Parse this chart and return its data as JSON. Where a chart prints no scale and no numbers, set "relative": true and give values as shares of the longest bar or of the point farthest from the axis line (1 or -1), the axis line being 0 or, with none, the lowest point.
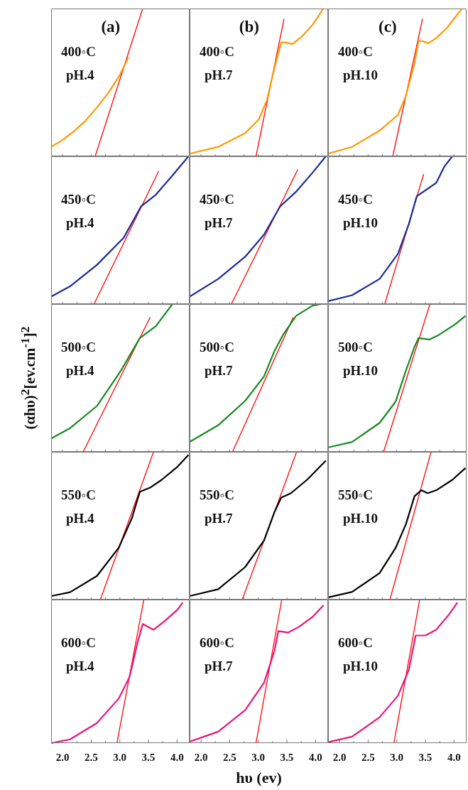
{
  "chart_data": [
    {
      "type": "line",
      "title": "(a)",
      "annotations": [
        "400◦C",
        "pH.4"
      ],
      "xlim": [
        1.8,
        4.22
      ],
      "xticks": [
        {
          "value": 2,
          "label": null
        },
        {
          "value": 2.25,
          "label": null
        },
        {
          "value": 2.5,
          "label": null
        },
        {
          "value": 2.75,
          "label": null
        },
        {
          "value": 3,
          "label": null
        },
        {
          "value": 3.25,
          "label": null
        },
        {
          "value": 3.5,
          "label": null
        },
        {
          "value": 3.75,
          "label": null
        },
        {
          "value": 4,
          "label": null
        }
      ],
      "relative": true,
      "tick_labels": false,
      "series": [
        {
          "color": "#ff9900",
          "x": [
            1.8,
            2.0,
            2.2,
            2.4,
            2.6,
            2.8,
            3.0,
            3.1,
            3.15
          ],
          "values": [
            0.064,
            0.11,
            0.17,
            0.24,
            0.33,
            0.43,
            0.55,
            0.63,
            0.67
          ]
        },
        {
          "color": "#ff0000",
          "x": [
            2.57,
            3.4
          ],
          "values": [
            0,
            1
          ]
        }
      ]
    },
    {
      "type": "line",
      "title": "(b)",
      "annotations": [
        "400◦C",
        "pH.7"
      ],
      "xlim": [
        1.8,
        4.22
      ],
      "xticks": [
        {
          "value": 2,
          "label": null
        },
        {
          "value": 2.25,
          "label": null
        },
        {
          "value": 2.5,
          "label": null
        },
        {
          "value": 2.75,
          "label": null
        },
        {
          "value": 3,
          "label": null
        },
        {
          "value": 3.25,
          "label": null
        },
        {
          "value": 3.5,
          "label": null
        },
        {
          "value": 3.75,
          "label": null
        },
        {
          "value": 4,
          "label": null
        }
      ],
      "relative": true,
      "tick_labels": false,
      "series": [
        {
          "color": "#ff9900",
          "x": [
            1.8,
            2.3,
            2.77,
            3.01,
            3.15,
            3.29,
            3.4,
            3.48,
            3.6,
            3.76,
            3.95,
            4.14
          ],
          "values": [
            0.018,
            0.064,
            0.156,
            0.25,
            0.38,
            0.61,
            0.77,
            0.77,
            0.76,
            0.81,
            0.89,
            1
          ]
        },
        {
          "color": "#ff0000",
          "x": [
            2.96,
            3.45
          ],
          "values": [
            0,
            0.93
          ]
        }
      ]
    },
    {
      "type": "line",
      "title": "(c)",
      "annotations": [
        "400◦C",
        "pH.10"
      ],
      "xlim": [
        1.8,
        4.22
      ],
      "xticks": [
        {
          "value": 2,
          "label": null
        },
        {
          "value": 2.25,
          "label": null
        },
        {
          "value": 2.5,
          "label": null
        },
        {
          "value": 2.75,
          "label": null
        },
        {
          "value": 3,
          "label": null
        },
        {
          "value": 3.25,
          "label": null
        },
        {
          "value": 3.5,
          "label": null
        },
        {
          "value": 3.75,
          "label": null
        },
        {
          "value": 4,
          "label": null
        }
      ],
      "relative": true,
      "tick_labels": false,
      "series": [
        {
          "color": "#ff9900",
          "x": [
            1.8,
            2.22,
            2.7,
            3.02,
            3.16,
            3.31,
            3.38,
            3.45,
            3.55,
            3.69,
            3.88,
            4.14
          ],
          "values": [
            0.018,
            0.064,
            0.174,
            0.28,
            0.41,
            0.63,
            0.78,
            0.78,
            0.765,
            0.8,
            0.87,
            1
          ]
        },
        {
          "color": "#ff0000",
          "x": [
            2.93,
            3.45
          ],
          "values": [
            0,
            0.93
          ]
        }
      ]
    },
    {
      "type": "line",
      "annotations": [
        "450◦C",
        "pH.4"
      ],
      "xlim": [
        1.8,
        4.22
      ],
      "xticks": [
        {
          "value": 2,
          "label": null
        },
        {
          "value": 2.25,
          "label": null
        },
        {
          "value": 2.5,
          "label": null
        },
        {
          "value": 2.75,
          "label": null
        },
        {
          "value": 3,
          "label": null
        },
        {
          "value": 3.25,
          "label": null
        },
        {
          "value": 3.5,
          "label": null
        },
        {
          "value": 3.75,
          "label": null
        },
        {
          "value": 4,
          "label": null
        }
      ],
      "relative": true,
      "tick_labels": false,
      "series": [
        {
          "color": "#1a2a9a",
          "x": [
            1.8,
            2.13,
            2.6,
            3.07,
            3.37,
            3.63,
            3.92,
            4.2
          ],
          "values": [
            0.05,
            0.12,
            0.265,
            0.45,
            0.66,
            0.74,
            0.87,
            1
          ]
        },
        {
          "color": "#ff0000",
          "x": [
            2.55,
            3.68
          ],
          "values": [
            0,
            0.9
          ]
        }
      ]
    },
    {
      "type": "line",
      "annotations": [
        "450◦C",
        "pH.7"
      ],
      "xlim": [
        1.8,
        4.22
      ],
      "xticks": [
        {
          "value": 2,
          "label": null
        },
        {
          "value": 2.25,
          "label": null
        },
        {
          "value": 2.5,
          "label": null
        },
        {
          "value": 2.75,
          "label": null
        },
        {
          "value": 3,
          "label": null
        },
        {
          "value": 3.25,
          "label": null
        },
        {
          "value": 3.5,
          "label": null
        },
        {
          "value": 3.75,
          "label": null
        },
        {
          "value": 4,
          "label": null
        }
      ],
      "relative": true,
      "tick_labels": false,
      "series": [
        {
          "color": "#1a2a9a",
          "x": [
            1.8,
            2.3,
            2.77,
            3.1,
            3.38,
            3.66,
            3.95,
            4.18
          ],
          "values": [
            0.05,
            0.17,
            0.32,
            0.47,
            0.66,
            0.76,
            0.89,
            1
          ]
        },
        {
          "color": "#ff0000",
          "x": [
            2.53,
            3.69
          ],
          "values": [
            0,
            0.91
          ]
        }
      ]
    },
    {
      "type": "line",
      "annotations": [
        "450◦C",
        "pH.10"
      ],
      "xlim": [
        1.8,
        4.22
      ],
      "xticks": [
        {
          "value": 2,
          "label": null
        },
        {
          "value": 2.25,
          "label": null
        },
        {
          "value": 2.5,
          "label": null
        },
        {
          "value": 2.75,
          "label": null
        },
        {
          "value": 3,
          "label": null
        },
        {
          "value": 3.25,
          "label": null
        },
        {
          "value": 3.5,
          "label": null
        },
        {
          "value": 3.75,
          "label": null
        },
        {
          "value": 4,
          "label": null
        }
      ],
      "relative": true,
      "tick_labels": false,
      "series": [
        {
          "color": "#1a2a9a",
          "x": [
            1.8,
            2.22,
            2.7,
            3.02,
            3.21,
            3.35,
            3.54,
            3.69,
            3.83,
            3.97
          ],
          "values": [
            0.02,
            0.06,
            0.17,
            0.34,
            0.54,
            0.73,
            0.78,
            0.82,
            0.93,
            1
          ]
        },
        {
          "color": "#ff0000",
          "x": [
            2.79,
            3.47
          ],
          "values": [
            0,
            0.88
          ]
        }
      ]
    },
    {
      "type": "line",
      "annotations": [
        "500◦C",
        "pH.4"
      ],
      "ylabel": "(αhυ)$^{2}$[ev.cm$^{-1}$]$^{2}$",
      "xlim": [
        1.8,
        4.22
      ],
      "xticks": [
        {
          "value": 2,
          "label": null
        },
        {
          "value": 2.25,
          "label": null
        },
        {
          "value": 2.5,
          "label": null
        },
        {
          "value": 2.75,
          "label": null
        },
        {
          "value": 3,
          "label": null
        },
        {
          "value": 3.25,
          "label": null
        },
        {
          "value": 3.5,
          "label": null
        },
        {
          "value": 3.75,
          "label": null
        },
        {
          "value": 4,
          "label": null
        }
      ],
      "relative": true,
      "tick_labels": false,
      "series": [
        {
          "color": "#138a1f",
          "x": [
            1.8,
            2.13,
            2.6,
            3.02,
            3.35,
            3.63,
            3.92
          ],
          "values": [
            0.09,
            0.16,
            0.31,
            0.55,
            0.77,
            0.85,
            1
          ]
        },
        {
          "color": "#ff0000",
          "x": [
            2.36,
            3.53
          ],
          "values": [
            0,
            0.91
          ]
        }
      ]
    },
    {
      "type": "line",
      "annotations": [
        "500◦C",
        "pH.7"
      ],
      "xlim": [
        1.8,
        4.22
      ],
      "xticks": [
        {
          "value": 2,
          "label": null
        },
        {
          "value": 2.25,
          "label": null
        },
        {
          "value": 2.5,
          "label": null
        },
        {
          "value": 2.75,
          "label": null
        },
        {
          "value": 3,
          "label": null
        },
        {
          "value": 3.25,
          "label": null
        },
        {
          "value": 3.5,
          "label": null
        },
        {
          "value": 3.75,
          "label": null
        },
        {
          "value": 4,
          "label": null
        }
      ],
      "relative": true,
      "tick_labels": false,
      "series": [
        {
          "color": "#138a1f",
          "x": [
            1.8,
            2.3,
            2.77,
            3.1,
            3.28,
            3.43,
            3.66,
            3.95,
            4.1
          ],
          "values": [
            0.067,
            0.18,
            0.345,
            0.51,
            0.68,
            0.79,
            0.92,
            0.99,
            1
          ]
        },
        {
          "color": "#ff0000",
          "x": [
            2.55,
            3.61
          ],
          "values": [
            0,
            0.91
          ]
        }
      ]
    },
    {
      "type": "line",
      "annotations": [
        "500◦C",
        "pH.10"
      ],
      "xlim": [
        1.8,
        4.22
      ],
      "xticks": [
        {
          "value": 2,
          "label": null
        },
        {
          "value": 2.25,
          "label": null
        },
        {
          "value": 2.5,
          "label": null
        },
        {
          "value": 2.75,
          "label": null
        },
        {
          "value": 3,
          "label": null
        },
        {
          "value": 3.25,
          "label": null
        },
        {
          "value": 3.5,
          "label": null
        },
        {
          "value": 3.75,
          "label": null
        },
        {
          "value": 4,
          "label": null
        }
      ],
      "relative": true,
      "tick_labels": false,
      "series": [
        {
          "color": "#138a1f",
          "x": [
            1.8,
            2.22,
            2.7,
            2.98,
            3.16,
            3.31,
            3.38,
            3.57,
            3.73,
            4.01,
            4.2
          ],
          "values": [
            0.03,
            0.067,
            0.196,
            0.34,
            0.55,
            0.71,
            0.77,
            0.76,
            0.79,
            0.86,
            0.92
          ]
        },
        {
          "color": "#ff0000",
          "x": [
            2.77,
            3.58
          ],
          "values": [
            0,
            1
          ]
        }
      ]
    },
    {
      "type": "line",
      "annotations": [
        "550◦C",
        "pH.4"
      ],
      "xlim": [
        1.8,
        4.22
      ],
      "xticks": [
        {
          "value": 2,
          "label": null
        },
        {
          "value": 2.25,
          "label": null
        },
        {
          "value": 2.5,
          "label": null
        },
        {
          "value": 2.75,
          "label": null
        },
        {
          "value": 3,
          "label": null
        },
        {
          "value": 3.25,
          "label": null
        },
        {
          "value": 3.5,
          "label": null
        },
        {
          "value": 3.75,
          "label": null
        },
        {
          "value": 4,
          "label": null
        }
      ],
      "relative": true,
      "tick_labels": false,
      "series": [
        {
          "color": "#000000",
          "x": [
            1.8,
            2.13,
            2.6,
            2.98,
            3.21,
            3.35,
            3.54,
            3.73,
            4.01,
            4.2
          ],
          "values": [
            0.024,
            0.05,
            0.16,
            0.35,
            0.55,
            0.73,
            0.76,
            0.81,
            0.9,
            0.98
          ]
        },
        {
          "color": "#ff0000",
          "x": [
            2.66,
            3.59
          ],
          "values": [
            0,
            1
          ]
        }
      ]
    },
    {
      "type": "line",
      "annotations": [
        "550◦C",
        "pH.7"
      ],
      "xlim": [
        1.8,
        4.22
      ],
      "xticks": [
        {
          "value": 2,
          "label": null
        },
        {
          "value": 2.25,
          "label": null
        },
        {
          "value": 2.5,
          "label": null
        },
        {
          "value": 2.75,
          "label": null
        },
        {
          "value": 3,
          "label": null
        },
        {
          "value": 3.25,
          "label": null
        },
        {
          "value": 3.5,
          "label": null
        },
        {
          "value": 3.75,
          "label": null
        },
        {
          "value": 4,
          "label": null
        }
      ],
      "relative": true,
      "tick_labels": false,
      "series": [
        {
          "color": "#000000",
          "x": [
            1.8,
            2.3,
            2.77,
            3.1,
            3.28,
            3.4,
            3.57,
            3.85,
            4.18
          ],
          "values": [
            0.024,
            0.07,
            0.22,
            0.4,
            0.59,
            0.69,
            0.72,
            0.81,
            0.94
          ]
        },
        {
          "color": "#ff0000",
          "x": [
            2.72,
            3.67
          ],
          "values": [
            0,
            1
          ]
        }
      ]
    },
    {
      "type": "line",
      "annotations": [
        "550◦C",
        "pH.10"
      ],
      "xlim": [
        1.8,
        4.22
      ],
      "xticks": [
        {
          "value": 2,
          "label": null
        },
        {
          "value": 2.25,
          "label": null
        },
        {
          "value": 2.5,
          "label": null
        },
        {
          "value": 2.75,
          "label": null
        },
        {
          "value": 3,
          "label": null
        },
        {
          "value": 3.25,
          "label": null
        },
        {
          "value": 3.5,
          "label": null
        },
        {
          "value": 3.75,
          "label": null
        },
        {
          "value": 4,
          "label": null
        }
      ],
      "relative": true,
      "tick_labels": false,
      "series": [
        {
          "color": "#000000",
          "x": [
            1.8,
            2.22,
            2.7,
            2.98,
            3.16,
            3.31,
            3.43,
            3.54,
            3.69,
            3.97,
            4.2
          ],
          "values": [
            0.015,
            0.052,
            0.18,
            0.35,
            0.51,
            0.7,
            0.74,
            0.72,
            0.74,
            0.81,
            0.89
          ]
        },
        {
          "color": "#ff0000",
          "x": [
            2.88,
            3.6
          ],
          "values": [
            0,
            1
          ]
        }
      ]
    },
    {
      "type": "line",
      "annotations": [
        "600◦C",
        "pH.4"
      ],
      "xlim": [
        1.8,
        4.22
      ],
      "xticks": [
        {
          "value": 2,
          "label": "2.0"
        },
        {
          "value": 2.25,
          "label": null
        },
        {
          "value": 2.5,
          "label": "2.5"
        },
        {
          "value": 2.75,
          "label": null
        },
        {
          "value": 3,
          "label": "3.0"
        },
        {
          "value": 3.25,
          "label": null
        },
        {
          "value": 3.5,
          "label": "3.5"
        },
        {
          "value": 3.75,
          "label": null
        },
        {
          "value": 4,
          "label": "4.0"
        }
      ],
      "relative": true,
      "tick_labels": "x",
      "series": [
        {
          "color": "#e8147a",
          "x": [
            1.8,
            2.13,
            2.6,
            2.98,
            3.17,
            3.31,
            3.4,
            3.59,
            3.78,
            4.01,
            4.1
          ],
          "values": [
            0,
            0.026,
            0.14,
            0.31,
            0.46,
            0.7,
            0.83,
            0.79,
            0.85,
            0.93,
            0.98
          ]
        },
        {
          "color": "#ff0000",
          "x": [
            2.95,
            3.42
          ],
          "values": [
            0,
            1
          ]
        }
      ]
    },
    {
      "type": "line",
      "annotations": [
        "600◦C",
        "pH.7"
      ],
      "xlabel": "hυ (ev)",
      "xlim": [
        1.8,
        4.22
      ],
      "xticks": [
        {
          "value": 2,
          "label": "2.0"
        },
        {
          "value": 2.25,
          "label": null
        },
        {
          "value": 2.5,
          "label": "2.5"
        },
        {
          "value": 2.75,
          "label": null
        },
        {
          "value": 3,
          "label": "3.0"
        },
        {
          "value": 3.25,
          "label": null
        },
        {
          "value": 3.5,
          "label": "3.5"
        },
        {
          "value": 3.75,
          "label": null
        },
        {
          "value": 4,
          "label": "4.0"
        }
      ],
      "relative": true,
      "tick_labels": "x",
      "series": [
        {
          "color": "#e8147a",
          "x": [
            1.8,
            2.3,
            2.77,
            3.1,
            3.28,
            3.35,
            3.52,
            3.71,
            3.95,
            4.14
          ],
          "values": [
            0.01,
            0.08,
            0.23,
            0.42,
            0.64,
            0.78,
            0.77,
            0.81,
            0.88,
            0.96
          ]
        },
        {
          "color": "#ff0000",
          "x": [
            2.96,
            3.41
          ],
          "values": [
            0,
            1
          ]
        }
      ]
    },
    {
      "type": "line",
      "annotations": [
        "600◦C",
        "pH.10"
      ],
      "xlim": [
        1.8,
        4.22
      ],
      "xticks": [
        {
          "value": 2,
          "label": "2.0"
        },
        {
          "value": 2.25,
          "label": null
        },
        {
          "value": 2.5,
          "label": "2.5"
        },
        {
          "value": 2.75,
          "label": null
        },
        {
          "value": 3,
          "label": "3.0"
        },
        {
          "value": 3.25,
          "label": null
        },
        {
          "value": 3.5,
          "label": "3.5"
        },
        {
          "value": 3.75,
          "label": null
        },
        {
          "value": 4,
          "label": "4.0"
        }
      ],
      "relative": true,
      "tick_labels": "x",
      "series": [
        {
          "color": "#e8147a",
          "x": [
            1.8,
            2.22,
            2.7,
            3.02,
            3.21,
            3.33,
            3.5,
            3.69,
            3.92,
            4.06
          ],
          "values": [
            0.007,
            0.045,
            0.18,
            0.33,
            0.51,
            0.75,
            0.75,
            0.79,
            0.9,
            0.98
          ]
        },
        {
          "color": "#ff0000",
          "x": [
            2.95,
            3.4
          ],
          "values": [
            0,
            1
          ]
        }
      ]
    }
  ]
}
